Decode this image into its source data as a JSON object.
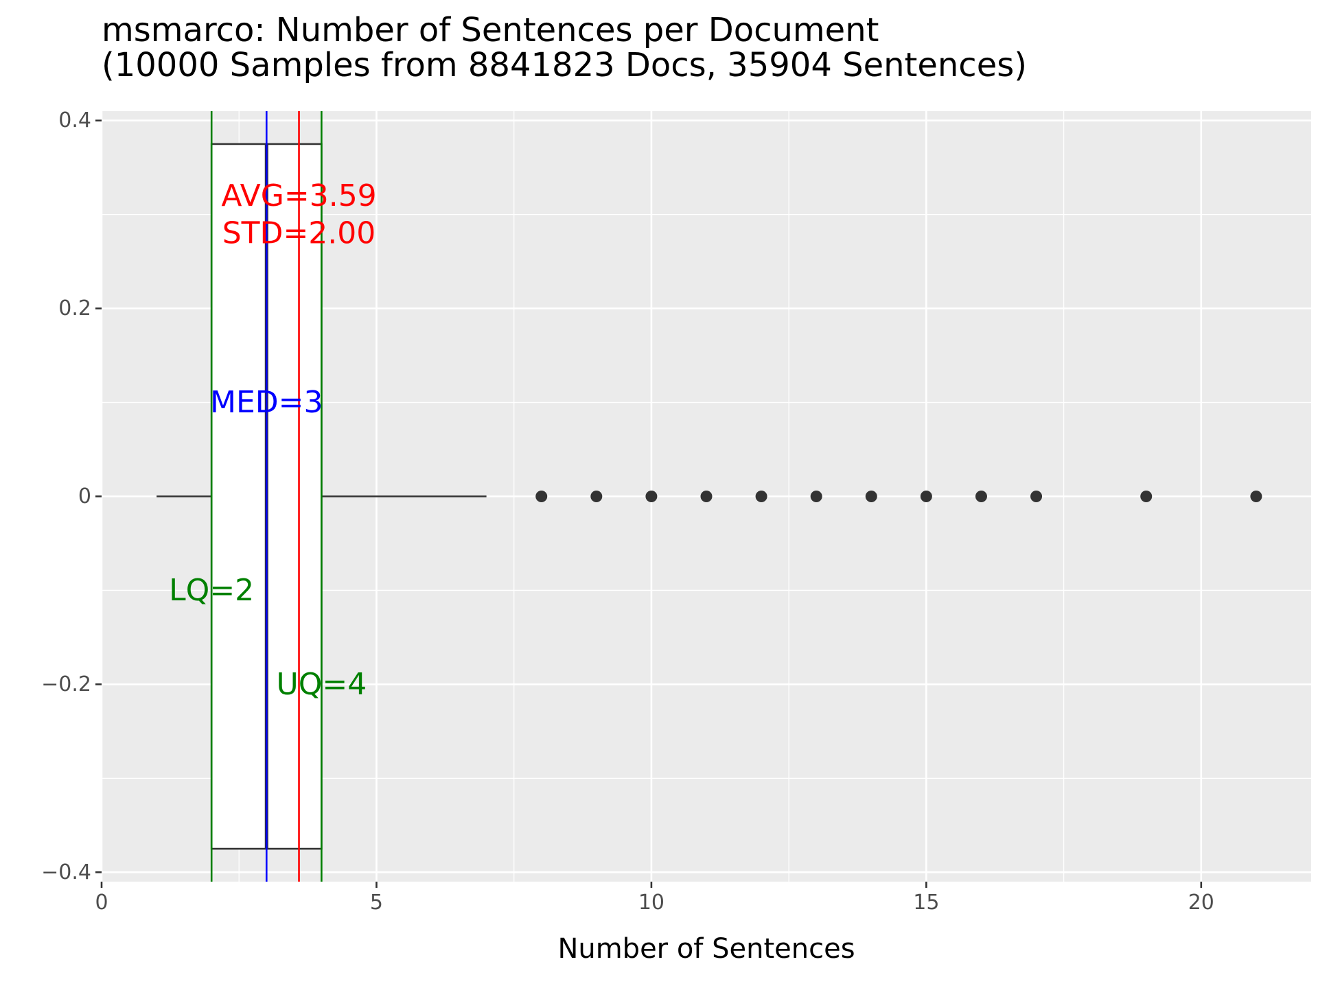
{
  "chart_data": {
    "type": "boxplot",
    "title": "msmarco: Number of Sentences per Document",
    "subtitle": "(10000 Samples from 8841823 Docs, 35904 Sentences)",
    "xlabel": "Number of Sentences",
    "ylabel": "",
    "xlim": [
      0,
      22
    ],
    "ylim": [
      -0.41,
      0.41
    ],
    "x_ticks": [
      0,
      5,
      10,
      15,
      20
    ],
    "x_tick_labels": [
      "0",
      "5",
      "10",
      "15",
      "20"
    ],
    "y_ticks": [
      0.4,
      0.2,
      0,
      -0.2,
      -0.4
    ],
    "y_tick_labels": [
      "0.4",
      "0.2",
      "0",
      "−0.2",
      "−0.4"
    ],
    "grid": true,
    "box": {
      "whisker_low": 1,
      "lower_quartile": 2,
      "median": 3,
      "upper_quartile": 4,
      "whisker_high": 7,
      "half_height": 0.375
    },
    "outliers": [
      8,
      9,
      10,
      11,
      12,
      13,
      14,
      15,
      16,
      17,
      19,
      21
    ],
    "reference_lines": [
      {
        "name": "LQ",
        "x": 2,
        "color": "#008000"
      },
      {
        "name": "UQ",
        "x": 4,
        "color": "#008000"
      },
      {
        "name": "MED",
        "x": 3,
        "color": "#0000ff"
      },
      {
        "name": "AVG",
        "x": 3.59,
        "color": "#ff0000"
      }
    ],
    "annotations": [
      {
        "text": "AVG=3.59",
        "x": 3.59,
        "y": 0.32,
        "color": "#ff0000"
      },
      {
        "text": "STD=2.00",
        "x": 3.59,
        "y": 0.28,
        "color": "#ff0000"
      },
      {
        "text": "MED=3",
        "x": 3,
        "y": 0.1,
        "color": "#0000ff"
      },
      {
        "text": "LQ=2",
        "x": 2,
        "y": -0.1,
        "color": "#008000"
      },
      {
        "text": "UQ=4",
        "x": 4,
        "y": -0.2,
        "color": "#008000"
      }
    ],
    "colors": {
      "panel_background": "#ebebeb",
      "grid": "#ffffff",
      "box_fill": "#ffffff",
      "box_outline": "#333333",
      "outlier": "#333333"
    }
  }
}
